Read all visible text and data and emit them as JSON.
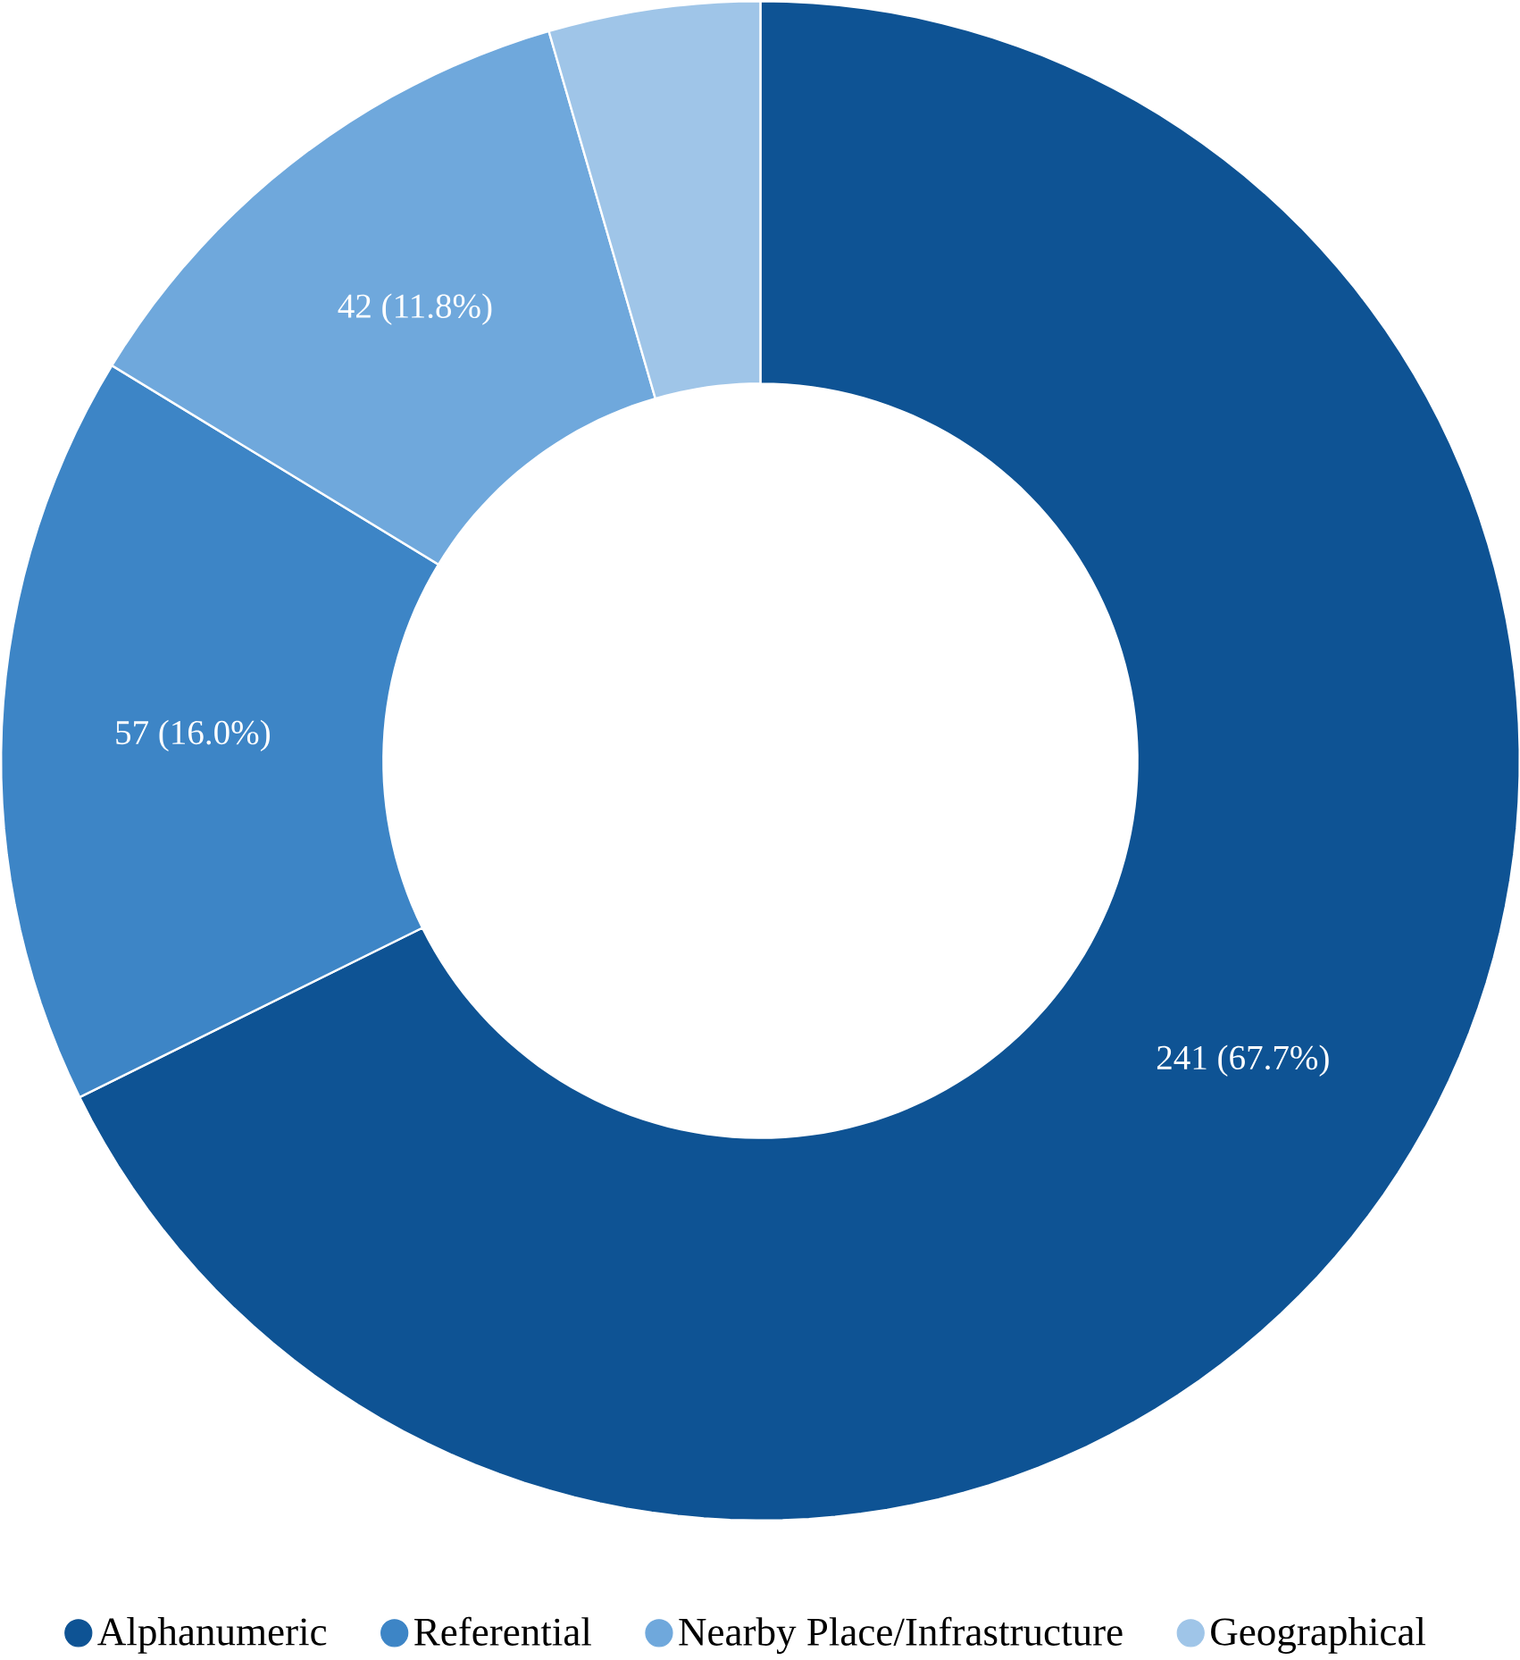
{
  "chart_data": {
    "type": "donut",
    "categories": [
      "Alphanumeric",
      "Referential",
      "Nearby Place/Infrastructure",
      "Geographical"
    ],
    "values": [
      241,
      57,
      42,
      16
    ],
    "value_labels": [
      "241 (67.7%)",
      "57 (16.0%)",
      "42 (11.8%)",
      null
    ],
    "colors": [
      "#0e5394",
      "#3d85c6",
      "#6fa8dc",
      "#9fc5e8"
    ],
    "legend": "bottom"
  }
}
